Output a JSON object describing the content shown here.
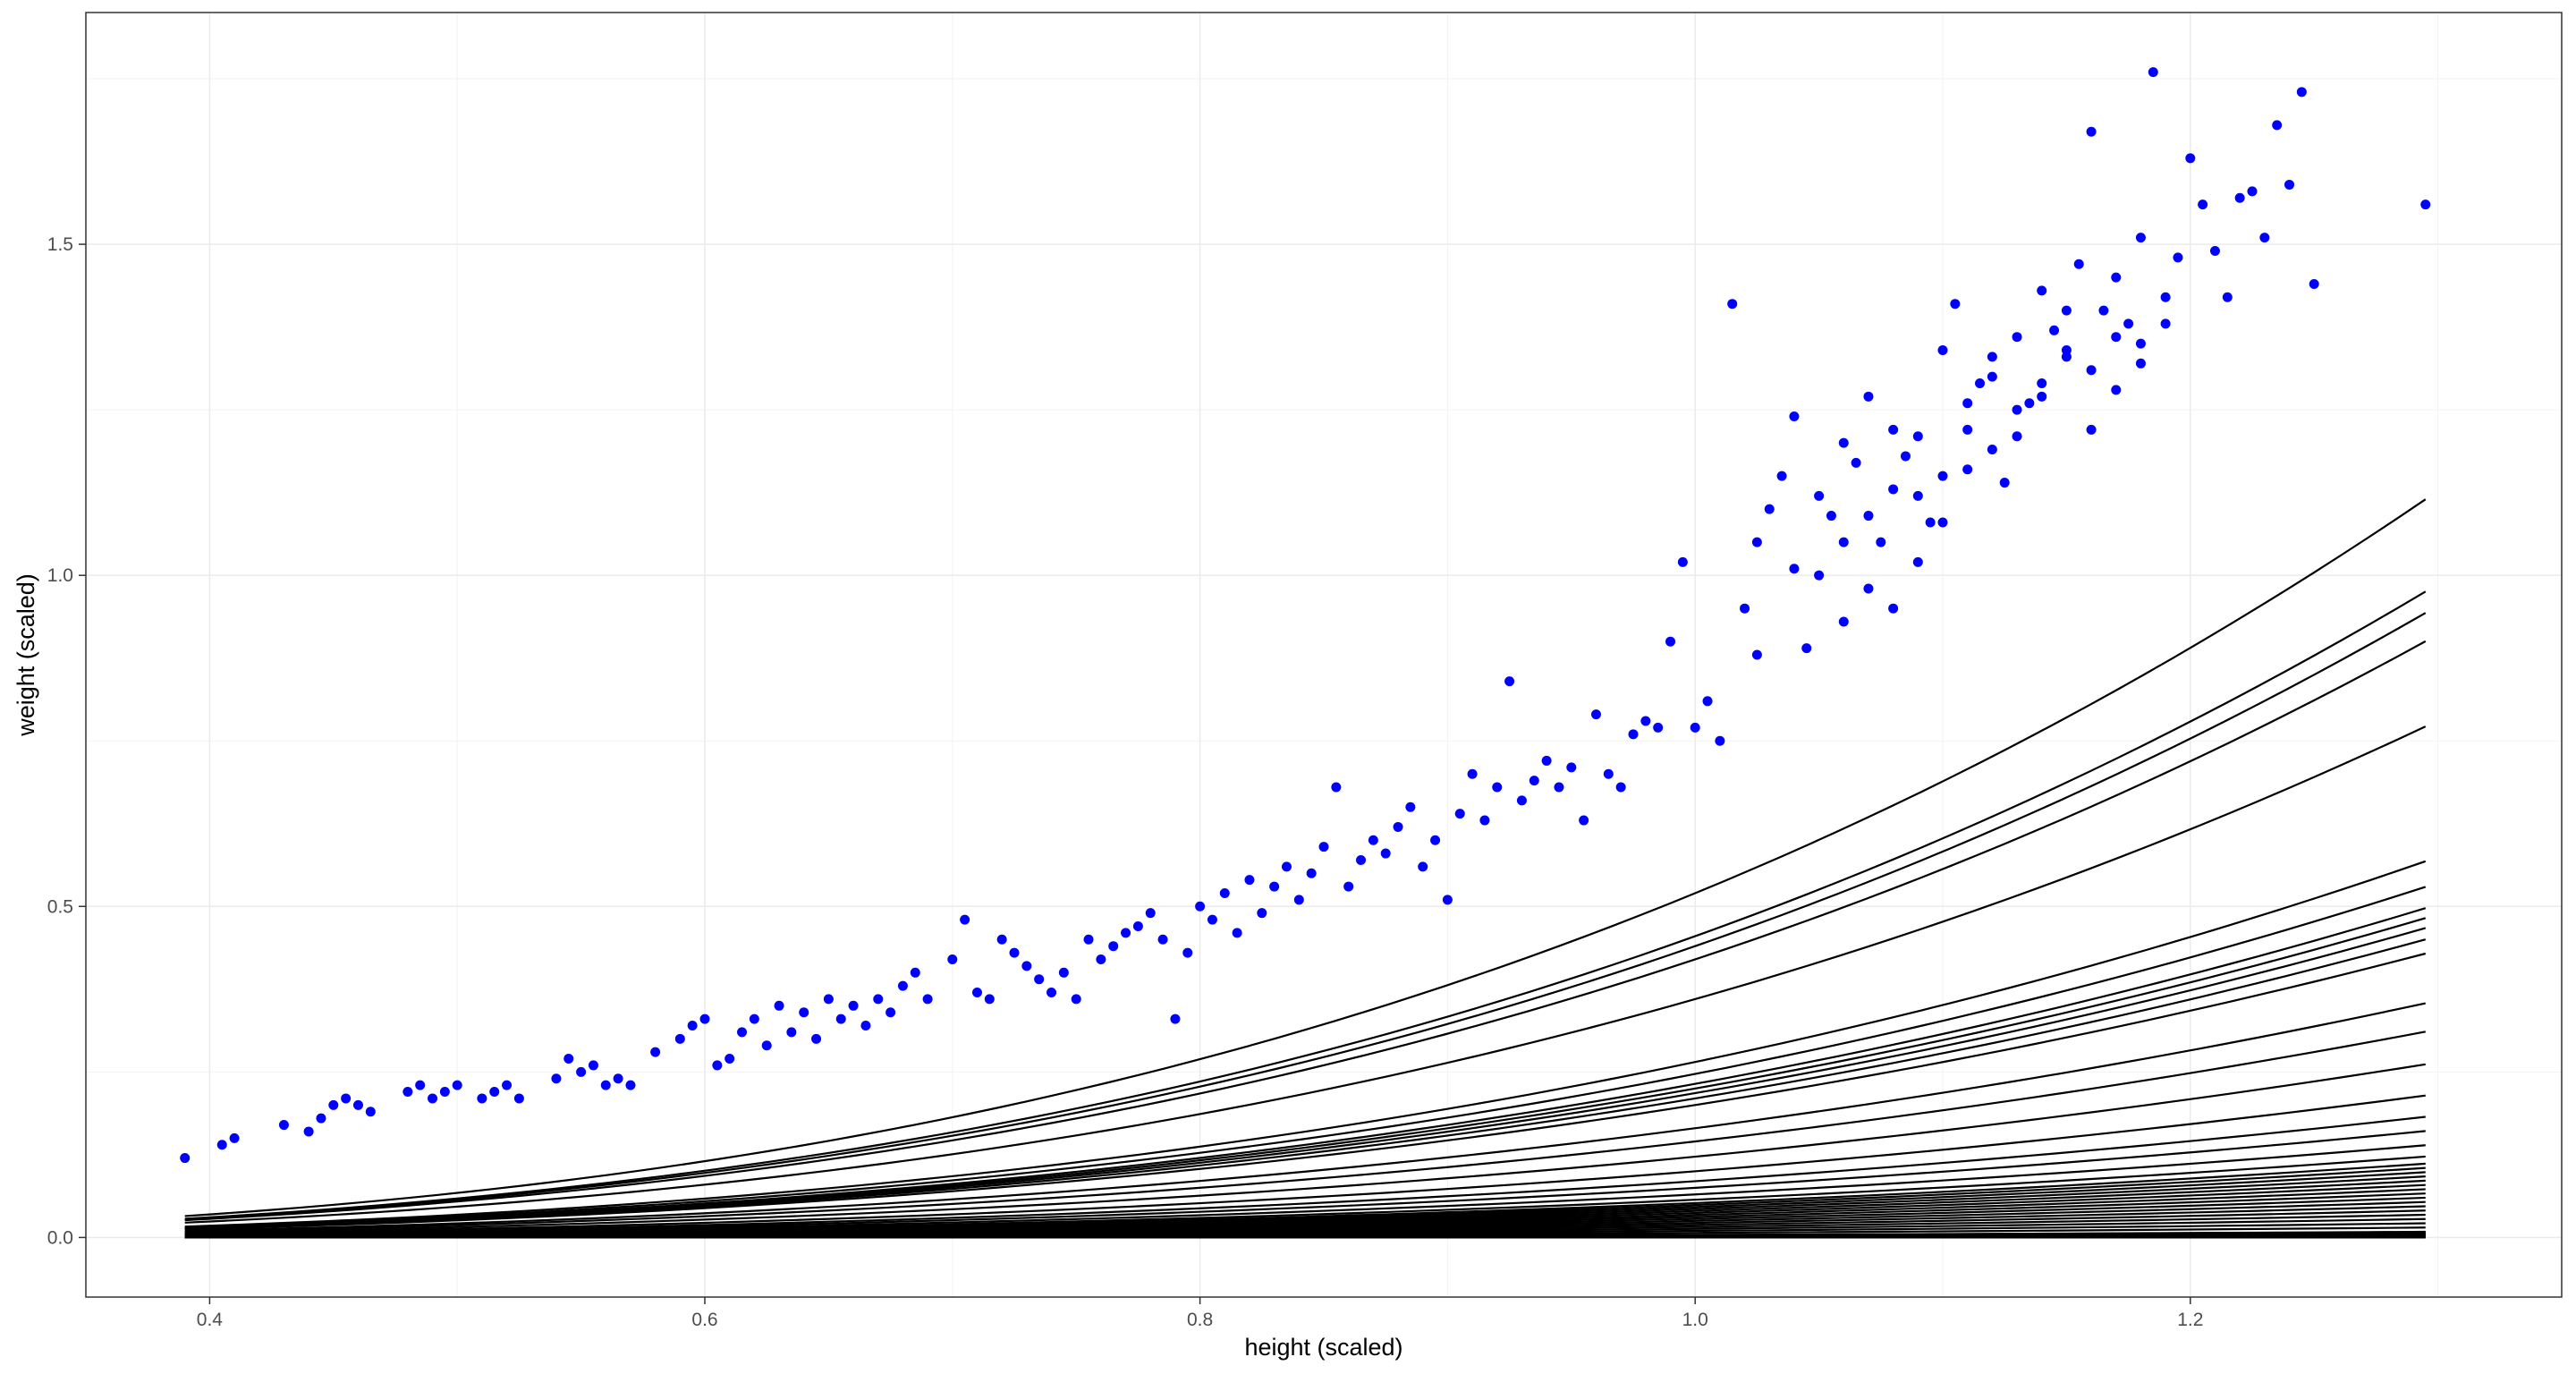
{
  "chart_data": {
    "type": "scatter",
    "title": "",
    "xlabel": "height (scaled)",
    "ylabel": "weight (scaled)",
    "xlim": [
      0.35,
      1.35
    ],
    "ylim": [
      -0.09,
      1.85
    ],
    "x_ticks": [
      0.4,
      0.6,
      0.8,
      1.0,
      1.2
    ],
    "x_tick_labels": [
      "0.4",
      "0.6",
      "0.8",
      "1.0",
      "1.2"
    ],
    "y_ticks": [
      0.0,
      0.5,
      1.0,
      1.5
    ],
    "y_tick_labels": [
      "0.0",
      "0.5",
      "1.0",
      "1.5"
    ],
    "grid": true,
    "theme": "bw",
    "points_color": "#0000ff",
    "line_color": "#000000",
    "points": [
      [
        0.39,
        0.12
      ],
      [
        0.405,
        0.14
      ],
      [
        0.41,
        0.15
      ],
      [
        0.43,
        0.17
      ],
      [
        0.44,
        0.16
      ],
      [
        0.445,
        0.18
      ],
      [
        0.45,
        0.2
      ],
      [
        0.455,
        0.21
      ],
      [
        0.46,
        0.2
      ],
      [
        0.465,
        0.19
      ],
      [
        0.48,
        0.22
      ],
      [
        0.485,
        0.23
      ],
      [
        0.49,
        0.21
      ],
      [
        0.495,
        0.22
      ],
      [
        0.5,
        0.23
      ],
      [
        0.51,
        0.21
      ],
      [
        0.515,
        0.22
      ],
      [
        0.52,
        0.23
      ],
      [
        0.525,
        0.21
      ],
      [
        0.54,
        0.24
      ],
      [
        0.545,
        0.27
      ],
      [
        0.55,
        0.25
      ],
      [
        0.555,
        0.26
      ],
      [
        0.56,
        0.23
      ],
      [
        0.565,
        0.24
      ],
      [
        0.57,
        0.23
      ],
      [
        0.58,
        0.28
      ],
      [
        0.59,
        0.3
      ],
      [
        0.595,
        0.32
      ],
      [
        0.6,
        0.33
      ],
      [
        0.605,
        0.26
      ],
      [
        0.61,
        0.27
      ],
      [
        0.615,
        0.31
      ],
      [
        0.62,
        0.33
      ],
      [
        0.625,
        0.29
      ],
      [
        0.63,
        0.35
      ],
      [
        0.635,
        0.31
      ],
      [
        0.64,
        0.34
      ],
      [
        0.645,
        0.3
      ],
      [
        0.65,
        0.36
      ],
      [
        0.655,
        0.33
      ],
      [
        0.66,
        0.35
      ],
      [
        0.665,
        0.32
      ],
      [
        0.67,
        0.36
      ],
      [
        0.675,
        0.34
      ],
      [
        0.68,
        0.38
      ],
      [
        0.685,
        0.4
      ],
      [
        0.69,
        0.36
      ],
      [
        0.7,
        0.42
      ],
      [
        0.705,
        0.48
      ],
      [
        0.71,
        0.37
      ],
      [
        0.715,
        0.36
      ],
      [
        0.72,
        0.45
      ],
      [
        0.725,
        0.43
      ],
      [
        0.73,
        0.41
      ],
      [
        0.735,
        0.39
      ],
      [
        0.74,
        0.37
      ],
      [
        0.745,
        0.4
      ],
      [
        0.75,
        0.36
      ],
      [
        0.755,
        0.45
      ],
      [
        0.76,
        0.42
      ],
      [
        0.765,
        0.44
      ],
      [
        0.77,
        0.46
      ],
      [
        0.775,
        0.47
      ],
      [
        0.78,
        0.49
      ],
      [
        0.785,
        0.45
      ],
      [
        0.79,
        0.33
      ],
      [
        0.795,
        0.43
      ],
      [
        0.8,
        0.5
      ],
      [
        0.805,
        0.48
      ],
      [
        0.81,
        0.52
      ],
      [
        0.815,
        0.46
      ],
      [
        0.82,
        0.54
      ],
      [
        0.825,
        0.49
      ],
      [
        0.83,
        0.53
      ],
      [
        0.835,
        0.56
      ],
      [
        0.84,
        0.51
      ],
      [
        0.845,
        0.55
      ],
      [
        0.85,
        0.59
      ],
      [
        0.855,
        0.68
      ],
      [
        0.86,
        0.53
      ],
      [
        0.865,
        0.57
      ],
      [
        0.87,
        0.6
      ],
      [
        0.875,
        0.58
      ],
      [
        0.88,
        0.62
      ],
      [
        0.885,
        0.65
      ],
      [
        0.89,
        0.56
      ],
      [
        0.895,
        0.6
      ],
      [
        0.9,
        0.51
      ],
      [
        0.905,
        0.64
      ],
      [
        0.91,
        0.7
      ],
      [
        0.915,
        0.63
      ],
      [
        0.92,
        0.68
      ],
      [
        0.925,
        0.84
      ],
      [
        0.93,
        0.66
      ],
      [
        0.935,
        0.69
      ],
      [
        0.94,
        0.72
      ],
      [
        0.945,
        0.68
      ],
      [
        0.95,
        0.71
      ],
      [
        0.955,
        0.63
      ],
      [
        0.96,
        0.79
      ],
      [
        0.965,
        0.7
      ],
      [
        0.97,
        0.68
      ],
      [
        0.975,
        0.76
      ],
      [
        0.98,
        0.78
      ],
      [
        0.985,
        0.77
      ],
      [
        0.99,
        0.9
      ],
      [
        0.995,
        1.02
      ],
      [
        1.0,
        0.77
      ],
      [
        1.005,
        0.81
      ],
      [
        1.01,
        0.75
      ],
      [
        1.015,
        1.41
      ],
      [
        1.02,
        0.95
      ],
      [
        1.025,
        1.05
      ],
      [
        1.03,
        1.1
      ],
      [
        1.035,
        1.15
      ],
      [
        1.04,
        1.24
      ],
      [
        1.045,
        0.89
      ],
      [
        1.05,
        1.0
      ],
      [
        1.055,
        1.09
      ],
      [
        1.06,
        0.93
      ],
      [
        1.065,
        1.17
      ],
      [
        1.07,
        1.27
      ],
      [
        1.075,
        1.05
      ],
      [
        1.08,
        1.13
      ],
      [
        1.085,
        1.18
      ],
      [
        1.09,
        1.21
      ],
      [
        1.095,
        1.08
      ],
      [
        1.1,
        1.34
      ],
      [
        1.105,
        1.41
      ],
      [
        1.11,
        1.22
      ],
      [
        1.115,
        1.29
      ],
      [
        1.12,
        1.3
      ],
      [
        1.125,
        1.14
      ],
      [
        1.13,
        1.36
      ],
      [
        1.135,
        1.26
      ],
      [
        1.14,
        1.43
      ],
      [
        1.145,
        1.37
      ],
      [
        1.15,
        1.33
      ],
      [
        1.155,
        1.47
      ],
      [
        1.16,
        1.67
      ],
      [
        1.165,
        1.4
      ],
      [
        1.17,
        1.28
      ],
      [
        1.175,
        1.38
      ],
      [
        1.18,
        1.51
      ],
      [
        1.185,
        1.76
      ],
      [
        1.19,
        1.42
      ],
      [
        1.195,
        1.48
      ],
      [
        1.2,
        1.63
      ],
      [
        1.205,
        1.56
      ],
      [
        1.21,
        1.49
      ],
      [
        1.215,
        1.42
      ],
      [
        1.22,
        1.57
      ],
      [
        1.225,
        1.58
      ],
      [
        1.23,
        1.51
      ],
      [
        1.235,
        1.68
      ],
      [
        1.24,
        1.59
      ],
      [
        1.245,
        1.73
      ],
      [
        1.25,
        1.44
      ],
      [
        1.295,
        1.56
      ],
      [
        1.06,
        1.05
      ],
      [
        1.07,
        0.98
      ],
      [
        1.08,
        1.22
      ],
      [
        1.09,
        1.12
      ],
      [
        1.1,
        1.15
      ],
      [
        1.11,
        1.26
      ],
      [
        1.12,
        1.19
      ],
      [
        1.13,
        1.25
      ],
      [
        1.14,
        1.29
      ],
      [
        1.15,
        1.34
      ],
      [
        1.16,
        1.31
      ],
      [
        1.17,
        1.36
      ],
      [
        1.18,
        1.32
      ],
      [
        1.05,
        1.12
      ],
      [
        1.07,
        1.09
      ],
      [
        1.09,
        1.02
      ],
      [
        1.11,
        1.16
      ],
      [
        1.13,
        1.21
      ],
      [
        1.15,
        1.4
      ],
      [
        1.17,
        1.45
      ],
      [
        1.19,
        1.38
      ],
      [
        1.08,
        0.95
      ],
      [
        1.1,
        1.08
      ],
      [
        1.12,
        1.33
      ],
      [
        1.14,
        1.27
      ],
      [
        1.16,
        1.22
      ],
      [
        1.18,
        1.35
      ],
      [
        1.06,
        1.2
      ],
      [
        1.04,
        1.01
      ],
      [
        1.025,
        0.88
      ]
    ],
    "curves_note": "power curves y = a * x^b",
    "curves": [
      {
        "a": 0.52,
        "b": 2.95
      },
      {
        "a": 0.455,
        "b": 2.95
      },
      {
        "a": 0.44,
        "b": 2.95
      },
      {
        "a": 0.42,
        "b": 2.95
      },
      {
        "a": 0.36,
        "b": 2.95
      },
      {
        "a": 0.265,
        "b": 2.95
      },
      {
        "a": 0.247,
        "b": 2.95
      },
      {
        "a": 0.232,
        "b": 2.95
      },
      {
        "a": 0.225,
        "b": 2.95
      },
      {
        "a": 0.218,
        "b": 2.95
      },
      {
        "a": 0.21,
        "b": 2.95
      },
      {
        "a": 0.2,
        "b": 2.95
      },
      {
        "a": 0.165,
        "b": 2.95
      },
      {
        "a": 0.145,
        "b": 2.95
      },
      {
        "a": 0.122,
        "b": 2.95
      },
      {
        "a": 0.1,
        "b": 2.95
      },
      {
        "a": 0.085,
        "b": 2.95
      },
      {
        "a": 0.075,
        "b": 2.95
      },
      {
        "a": 0.065,
        "b": 2.95
      },
      {
        "a": 0.057,
        "b": 2.95
      },
      {
        "a": 0.052,
        "b": 2.95
      },
      {
        "a": 0.049,
        "b": 2.95
      },
      {
        "a": 0.046,
        "b": 2.95
      },
      {
        "a": 0.043,
        "b": 2.95
      },
      {
        "a": 0.04,
        "b": 2.95
      },
      {
        "a": 0.037,
        "b": 2.95
      },
      {
        "a": 0.034,
        "b": 2.95
      },
      {
        "a": 0.031,
        "b": 2.95
      },
      {
        "a": 0.028,
        "b": 2.95
      },
      {
        "a": 0.025,
        "b": 2.95
      },
      {
        "a": 0.022,
        "b": 2.95
      },
      {
        "a": 0.019,
        "b": 2.95
      },
      {
        "a": 0.016,
        "b": 2.95
      },
      {
        "a": 0.013,
        "b": 2.95
      },
      {
        "a": 0.01,
        "b": 2.95
      },
      {
        "a": 0.007,
        "b": 2.95
      },
      {
        "a": 0.004,
        "b": 2.95
      }
    ],
    "curve_x_range": [
      0.39,
      1.295
    ]
  }
}
